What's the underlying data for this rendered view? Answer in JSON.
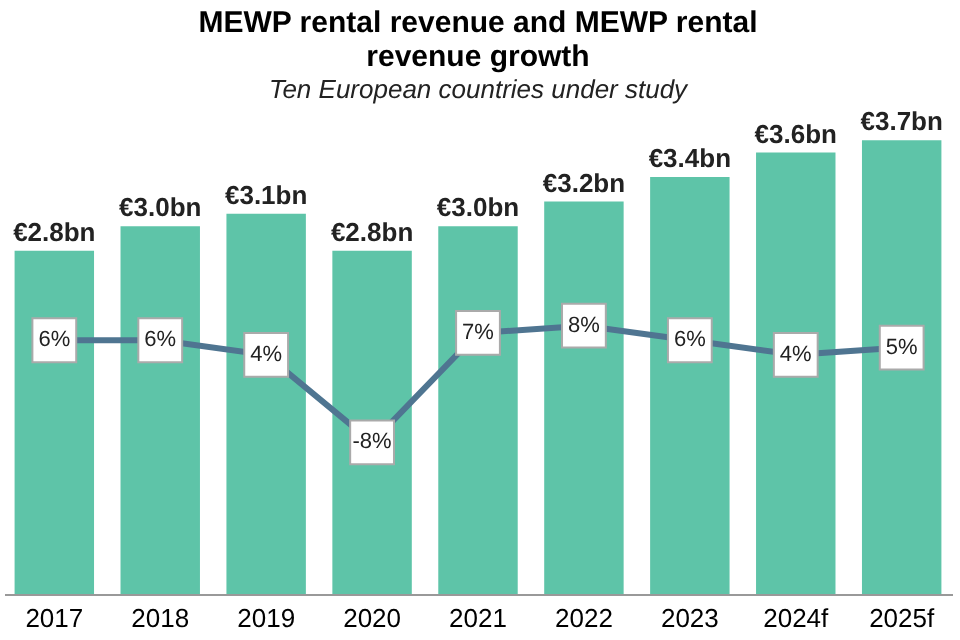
{
  "chart_data": {
    "type": "bar",
    "title": "MEWP rental revenue and MEWP rental revenue growth",
    "subtitle": "Ten European countries under study",
    "categories": [
      "2017",
      "2018",
      "2019",
      "2020",
      "2021",
      "2022",
      "2023",
      "2024f",
      "2025f"
    ],
    "series": [
      {
        "color": "#5ec4a8",
        "values": [
          2.8,
          3.0,
          3.1,
          2.8,
          3.0,
          3.2,
          3.4,
          3.6,
          3.7
        ],
        "value_labels": [
          "€2.8bn",
          "€3.0bn",
          "€3.1bn",
          "€2.8bn",
          "€3.0bn",
          "€3.2bn",
          "€3.4bn",
          "€3.6bn",
          "€3.7bn"
        ]
      },
      {
        "type": "line",
        "axis": "y2",
        "color": "#4f7591",
        "marker": "square",
        "values": [
          6,
          6,
          4,
          -8,
          7,
          8,
          6,
          4,
          5
        ],
        "value_labels": [
          "6%",
          "6%",
          "4%",
          "-8%",
          "7%",
          "8%",
          "6%",
          "4%",
          "5%"
        ]
      }
    ],
    "grid": false,
    "tick_labels": "x"
  }
}
